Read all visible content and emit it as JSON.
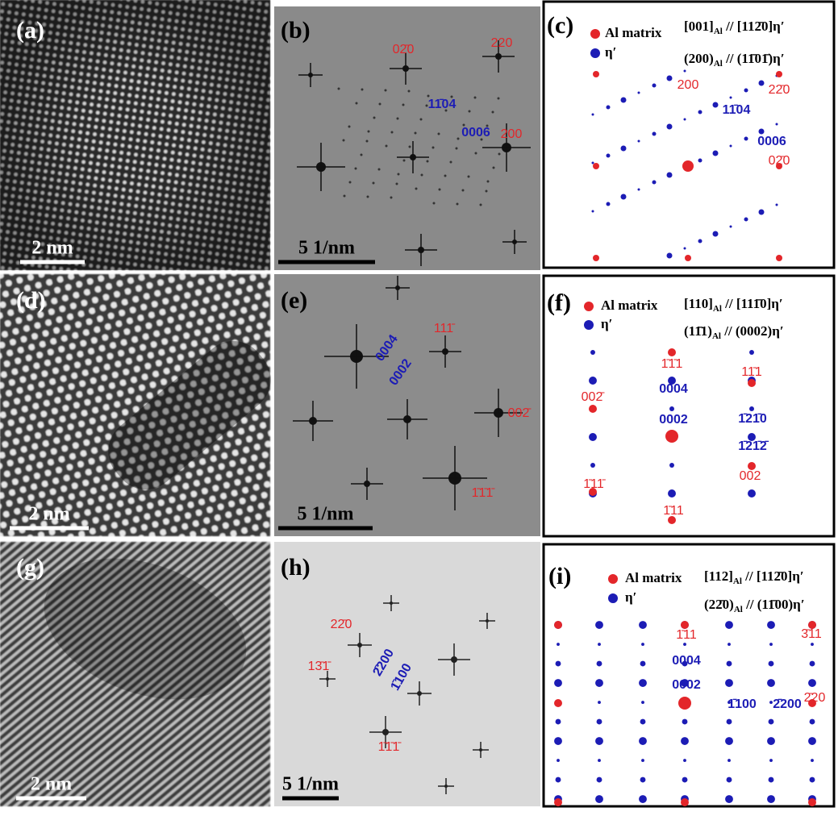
{
  "panels": [
    {
      "label": "(a)",
      "scale_bar": "2 nm"
    },
    {
      "label": "(b)",
      "scale_bar": "5 1/nm",
      "spots": [
        {
          "label": "02̄0",
          "color": "#e3262a"
        },
        {
          "label": "220",
          "color": "#e3262a"
        },
        {
          "label": "11̄04",
          "color": "#1c1cb5"
        },
        {
          "label": "0006",
          "color": "#1c1cb5"
        },
        {
          "label": "200",
          "color": "#e3262a"
        }
      ]
    },
    {
      "label": "(c)",
      "legend": [
        "Al matrix",
        "η′"
      ],
      "relations": [
        [
          "[001]",
          "Al",
          " // [112̄0]η′"
        ],
        [
          "(200)",
          "Al",
          " // (11̄01̄)η′"
        ]
      ],
      "spots": [
        {
          "label": "200",
          "color": "#e3262a"
        },
        {
          "label": "22̄0",
          "color": "#e3262a"
        },
        {
          "label": "11̄04",
          "color": "#1c1cb5"
        },
        {
          "label": "0006",
          "color": "#1c1cb5"
        },
        {
          "label": "02̄0",
          "color": "#e3262a"
        }
      ]
    },
    {
      "label": "(d)",
      "scale_bar": "2 nm"
    },
    {
      "label": "(e)",
      "scale_bar": "5 1/nm",
      "spots": [
        {
          "label": "0004",
          "color": "#1c1cb5"
        },
        {
          "label": "0002",
          "color": "#1c1cb5"
        },
        {
          "label": "111̄",
          "color": "#e3262a"
        },
        {
          "label": "002̄",
          "color": "#e3262a"
        },
        {
          "label": "1̄1̄1̄",
          "color": "#e3262a"
        }
      ]
    },
    {
      "label": "(f)",
      "legend": [
        "Al matrix",
        "η′"
      ],
      "relations": [
        [
          "[110]",
          "Al",
          " // [111̄0]η′"
        ],
        [
          "(11̄1)",
          "Al",
          " // (0002)η′"
        ]
      ],
      "spots": [
        {
          "label": "1̄1̄1",
          "color": "#e3262a"
        },
        {
          "label": "11̄1",
          "color": "#e3262a"
        },
        {
          "label": "0004",
          "color": "#1c1cb5"
        },
        {
          "label": "002̄",
          "color": "#e3262a"
        },
        {
          "label": "0002",
          "color": "#1c1cb5"
        },
        {
          "label": "1̄21̄0",
          "color": "#1c1cb5"
        },
        {
          "label": "1̄21̄2̄",
          "color": "#1c1cb5"
        },
        {
          "label": "002",
          "color": "#e3262a"
        },
        {
          "label": "1̄11̄",
          "color": "#e3262a"
        },
        {
          "label": "1̄11",
          "color": "#e3262a"
        }
      ]
    },
    {
      "label": "(g)",
      "scale_bar": "2 nm"
    },
    {
      "label": "(h)",
      "scale_bar": "5 1/nm",
      "spots": [
        {
          "label": "22̄0",
          "color": "#e3262a"
        },
        {
          "label": "13̄1̄",
          "color": "#e3262a"
        },
        {
          "label": "2̄200",
          "color": "#1c1cb5"
        },
        {
          "label": "1̄100",
          "color": "#1c1cb5"
        },
        {
          "label": "1̄1̄1̄",
          "color": "#e3262a"
        }
      ]
    },
    {
      "label": "(i)",
      "legend": [
        "Al matrix",
        "η′"
      ],
      "relations": [
        [
          "[112]",
          "Al",
          " // [112̄0]η′"
        ],
        [
          "(22̄0)",
          "Al",
          " // (11̄00)η′"
        ]
      ],
      "spots": [
        {
          "label": "1̄11",
          "color": "#e3262a"
        },
        {
          "label": "3̄11",
          "color": "#e3262a"
        },
        {
          "label": "0004",
          "color": "#1c1cb5"
        },
        {
          "label": "0002",
          "color": "#1c1cb5"
        },
        {
          "label": "1̄100",
          "color": "#1c1cb5"
        },
        {
          "label": "2̄200",
          "color": "#1c1cb5"
        },
        {
          "label": "2̄20",
          "color": "#e3262a"
        }
      ]
    }
  ]
}
